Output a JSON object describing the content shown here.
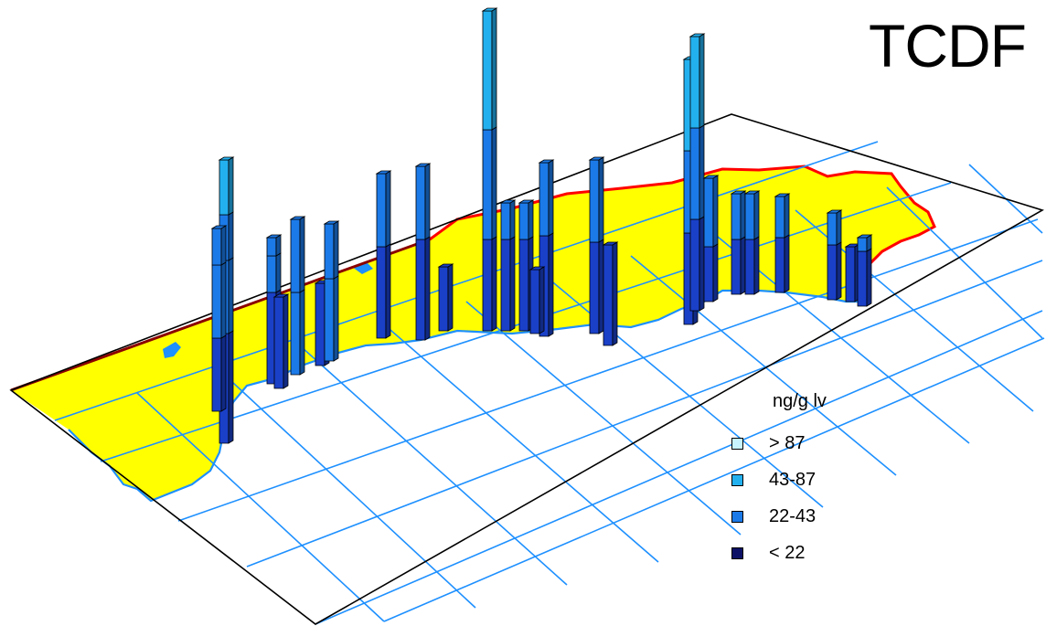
{
  "title": "TCDF",
  "legend": {
    "title": "ng/g lv",
    "items": [
      {
        "label": "> 87",
        "color": "#c8f4ff"
      },
      {
        "label": "43-87",
        "color": "#23b0ef"
      },
      {
        "label": "22-43",
        "color": "#1c7ae8"
      },
      {
        "label": "< 22",
        "color": "#0c1166"
      }
    ]
  },
  "colors": {
    "land": "#ffff00",
    "coast_west": "#1e90ff",
    "coast_east": "#ff0000",
    "grid": "#1e90ff",
    "frame": "#000000"
  },
  "icon": "3d-bar-map"
}
